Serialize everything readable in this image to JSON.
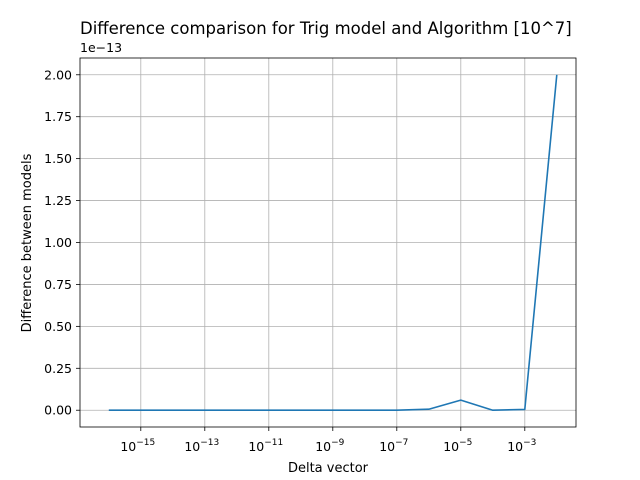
{
  "chart_data": {
    "type": "line",
    "title": "Difference comparison for Trig model and Algorithm [10^7]",
    "xlabel": "Delta vector",
    "ylabel": "Difference between models",
    "x_scale": "log",
    "xlim_exponents": [
      -16.9,
      -1.4
    ],
    "ylim": [
      -0.1,
      2.1
    ],
    "y_offset_label": "1e−13",
    "grid": true,
    "x_ticks": [
      {
        "exp": -15,
        "label": "10",
        "sup": "−15"
      },
      {
        "exp": -13,
        "label": "10",
        "sup": "−13"
      },
      {
        "exp": -11,
        "label": "10",
        "sup": "−11"
      },
      {
        "exp": -9,
        "label": "10",
        "sup": "−9"
      },
      {
        "exp": -7,
        "label": "10",
        "sup": "−7"
      },
      {
        "exp": -5,
        "label": "10",
        "sup": "−5"
      },
      {
        "exp": -3,
        "label": "10",
        "sup": "−3"
      }
    ],
    "y_ticks": [
      {
        "value": 0.0,
        "label": "0.00"
      },
      {
        "value": 0.25,
        "label": "0.25"
      },
      {
        "value": 0.5,
        "label": "0.50"
      },
      {
        "value": 0.75,
        "label": "0.75"
      },
      {
        "value": 1.0,
        "label": "1.00"
      },
      {
        "value": 1.25,
        "label": "1.25"
      },
      {
        "value": 1.5,
        "label": "1.50"
      },
      {
        "value": 1.75,
        "label": "1.75"
      },
      {
        "value": 2.0,
        "label": "2.00"
      }
    ],
    "series": [
      {
        "color": "#1f77b4",
        "x": [
          1e-16,
          1e-15,
          1e-14,
          1e-13,
          1e-12,
          1e-11,
          1e-10,
          1e-09,
          1e-08,
          1e-07,
          1e-06,
          1e-05,
          0.0001,
          0.001,
          0.01
        ],
        "y": [
          0,
          0,
          0,
          0,
          0,
          0,
          0,
          0,
          0,
          0,
          0.006,
          0.06,
          0,
          0.005,
          2.0
        ]
      }
    ]
  }
}
